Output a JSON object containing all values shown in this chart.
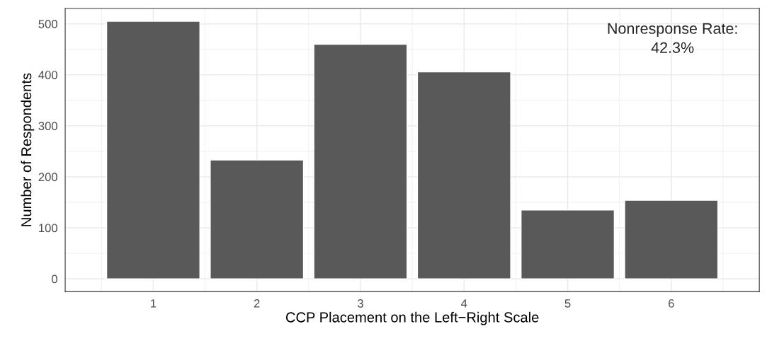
{
  "chart_data": {
    "type": "bar",
    "xlabel": "CCP Placement on the Left−Right Scale",
    "ylabel": "Number of Respondents",
    "categories": [
      "1",
      "2",
      "3",
      "4",
      "5",
      "6"
    ],
    "values": [
      505,
      233,
      460,
      406,
      135,
      154
    ],
    "color": "#595959",
    "ylim": [
      -25,
      530
    ],
    "yticks": [
      0,
      100,
      200,
      300,
      400,
      500
    ],
    "grid": true,
    "legend": false,
    "annotations": [
      "Nonresponse Rate:\n42.3%"
    ]
  }
}
